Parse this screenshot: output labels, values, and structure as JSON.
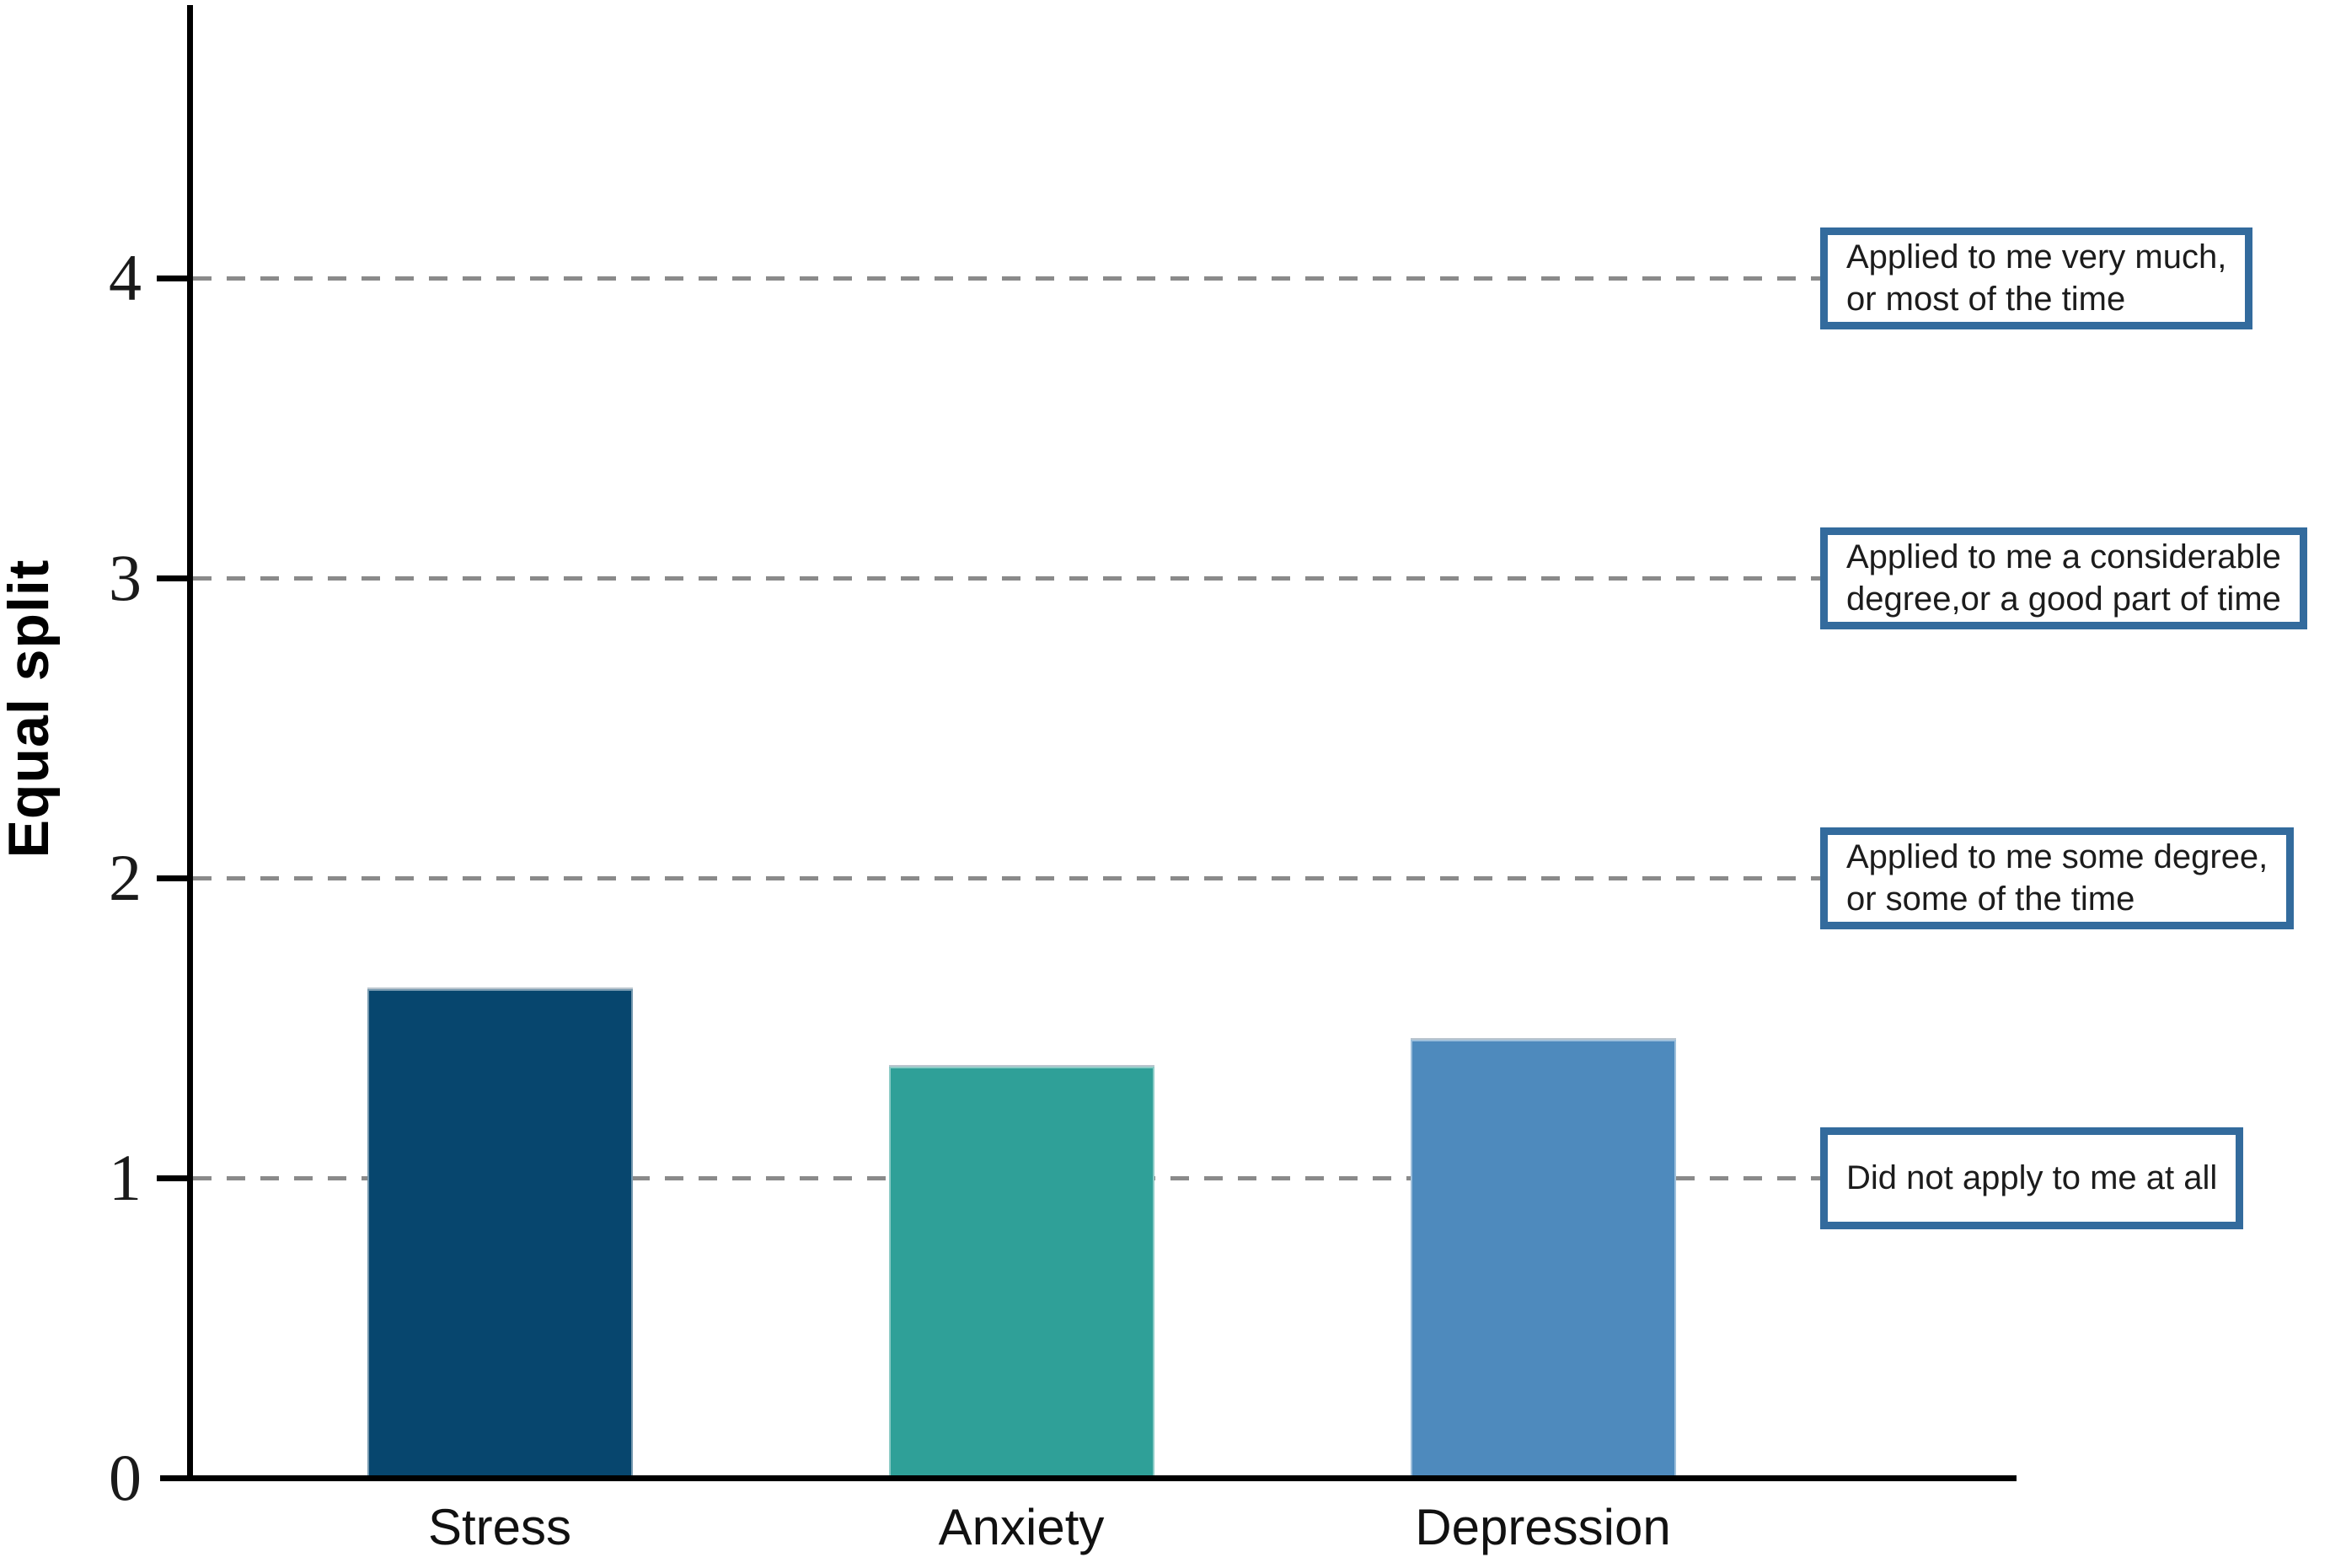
{
  "chart_data": {
    "type": "bar",
    "title": "",
    "xlabel": "",
    "ylabel": "Equal split",
    "categories": [
      "Stress",
      "Anxiety",
      "Depression"
    ],
    "values": [
      1.63,
      1.37,
      1.46
    ],
    "series_colors": [
      "#07466e",
      "#2fa098",
      "#4e8abd"
    ],
    "ylim": [
      0,
      4.9
    ],
    "yticks": [
      0,
      1,
      2,
      3,
      4
    ],
    "grid": "horizontal dashed lines at y = 1, 2, 3, 4",
    "legend_position": "none",
    "gridline_color": "#8a8a8a",
    "axis_color": "#000000",
    "annotation_border_color": "#336b9d",
    "annotations": [
      {
        "value": 4,
        "lines": [
          "Applied to me very much,",
          "or most of the time"
        ]
      },
      {
        "value": 3,
        "lines": [
          "Applied to me a considerable",
          "degree,or a good part of time"
        ]
      },
      {
        "value": 2,
        "lines": [
          "Applied to me some degree,",
          "or some of the time"
        ]
      },
      {
        "value": 1,
        "lines": [
          "Did not apply to me at all"
        ]
      }
    ]
  }
}
